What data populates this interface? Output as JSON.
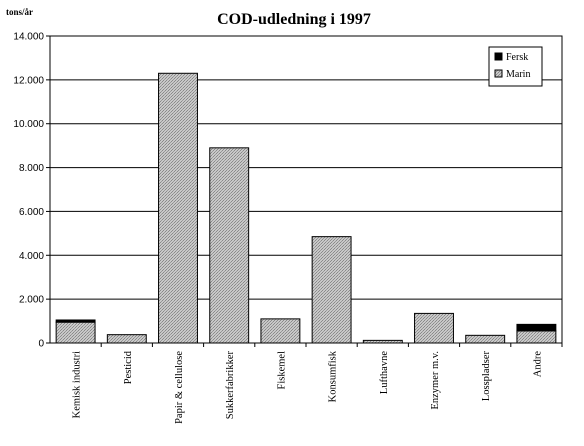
{
  "chart_data": {
    "type": "bar",
    "stacked": true,
    "title": "COD-udledning i 1997",
    "unit_label": "tons/år",
    "ylim": [
      0,
      14000
    ],
    "yticks": [
      0,
      2000,
      4000,
      6000,
      8000,
      10000,
      12000,
      14000
    ],
    "ytick_labels": [
      "0",
      "2.000",
      "4.000",
      "6.000",
      "8.000",
      "10.000",
      "12.000",
      "14.000"
    ],
    "grid": true,
    "legend_position": "top-right",
    "categories": [
      "Kemisk industri",
      "Pesticid",
      "Papir & cellulose",
      "Sukkerfabrikker",
      "Fiskemel",
      "Konsumfisk",
      "Lufthavne",
      "Enzymer m.v.",
      "Losspladser",
      "Andre"
    ],
    "series": [
      {
        "name": "Marin",
        "color": "#c0c0c0",
        "values": [
          950,
          380,
          12300,
          8900,
          1100,
          4850,
          120,
          1350,
          350,
          550
        ]
      },
      {
        "name": "Fersk",
        "color": "#000000",
        "values": [
          100,
          0,
          0,
          0,
          0,
          0,
          0,
          0,
          0,
          300
        ]
      }
    ],
    "legend_order": [
      "Fersk",
      "Marin"
    ]
  }
}
